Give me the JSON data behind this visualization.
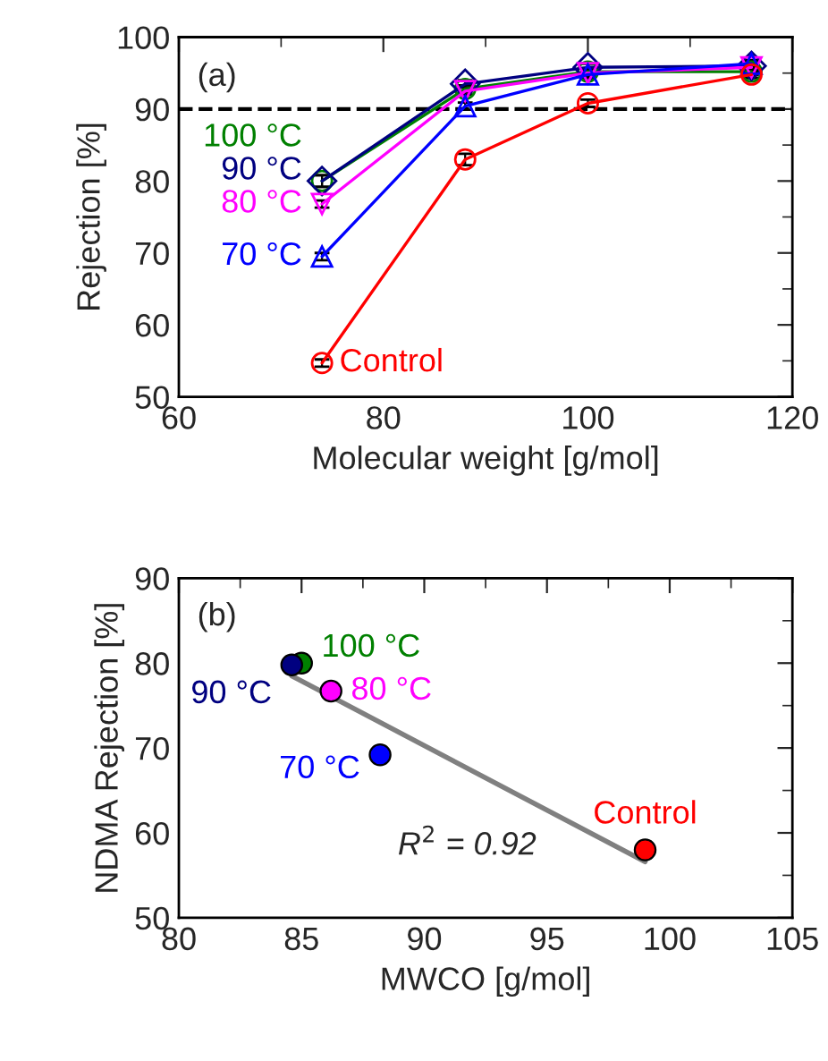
{
  "chart_data": [
    {
      "type": "line",
      "xlabel": "Molecular weight [g/mol]",
      "ylabel": "Rejection [%]",
      "x": [
        74,
        88,
        100,
        116
      ],
      "xlim": [
        60,
        120
      ],
      "xticks": [
        60,
        80,
        100,
        120
      ],
      "ylim": [
        50,
        100
      ],
      "yticks": [
        50,
        60,
        70,
        80,
        90,
        100
      ],
      "grid": false,
      "legend": false,
      "series": [
        {
          "name": "100 °C",
          "color": "#008000",
          "marker": "circle",
          "values": [
            80,
            92.8,
            95.2,
            95.2
          ],
          "errors": [
            0.8,
            0.5,
            0.5,
            0.5
          ]
        },
        {
          "name": "90 °C",
          "color": "#000080",
          "marker": "diamond",
          "values": [
            80,
            93.5,
            95.8,
            96
          ],
          "errors": [
            0.8,
            0.5,
            0.5,
            0.5
          ]
        },
        {
          "name": "80 °C",
          "color": "#ff00ff",
          "marker": "triangle_down",
          "values": [
            76.8,
            92.5,
            95,
            95.8
          ],
          "errors": [
            0.5,
            0.5,
            0.5,
            0.5
          ]
        },
        {
          "name": "70 °C",
          "color": "#0000ff",
          "marker": "triangle",
          "values": [
            69.5,
            90.4,
            94.8,
            96.3
          ],
          "errors": [
            0.5,
            0.5,
            0.5,
            0.5
          ]
        },
        {
          "name": "Control",
          "color": "#ff0000",
          "marker": "circle",
          "values": [
            54.7,
            83,
            90.8,
            94.8
          ],
          "errors": [
            0.5,
            0.8,
            0.5,
            0.5
          ]
        }
      ],
      "ref_lines": [
        {
          "axis": "y",
          "value": 90,
          "color": "#000000",
          "line_style": "dashed"
        }
      ],
      "annotations": [
        "(a)"
      ]
    },
    {
      "type": "scatter",
      "xlabel": "MWCO [g/mol]",
      "ylabel": "NDMA Rejection [%]",
      "xlim": [
        80,
        105
      ],
      "xticks": [
        80,
        85,
        90,
        95,
        100,
        105
      ],
      "ylim": [
        50,
        90
      ],
      "yticks": [
        50,
        60,
        70,
        80,
        90
      ],
      "grid": false,
      "legend": false,
      "series": [
        {
          "type": "line",
          "color": "#808080",
          "x": [
            84.6,
            99
          ],
          "values": [
            78.5,
            56.6
          ]
        },
        {
          "name": "100 °C",
          "color": "#008000",
          "x": [
            85
          ],
          "values": [
            80
          ]
        },
        {
          "name": "90 °C",
          "color": "#000080",
          "x": [
            84.6
          ],
          "values": [
            79.8
          ]
        },
        {
          "name": "80 °C",
          "color": "#ff00ff",
          "x": [
            86.2
          ],
          "values": [
            76.7
          ]
        },
        {
          "name": "70 °C",
          "color": "#0000ff",
          "x": [
            88.2
          ],
          "values": [
            69.2
          ]
        },
        {
          "name": "Control",
          "color": "#ff0000",
          "x": [
            99
          ],
          "values": [
            58
          ]
        }
      ],
      "annotations": [
        "(b)",
        "R$^{2}$ = 0.92"
      ]
    }
  ]
}
